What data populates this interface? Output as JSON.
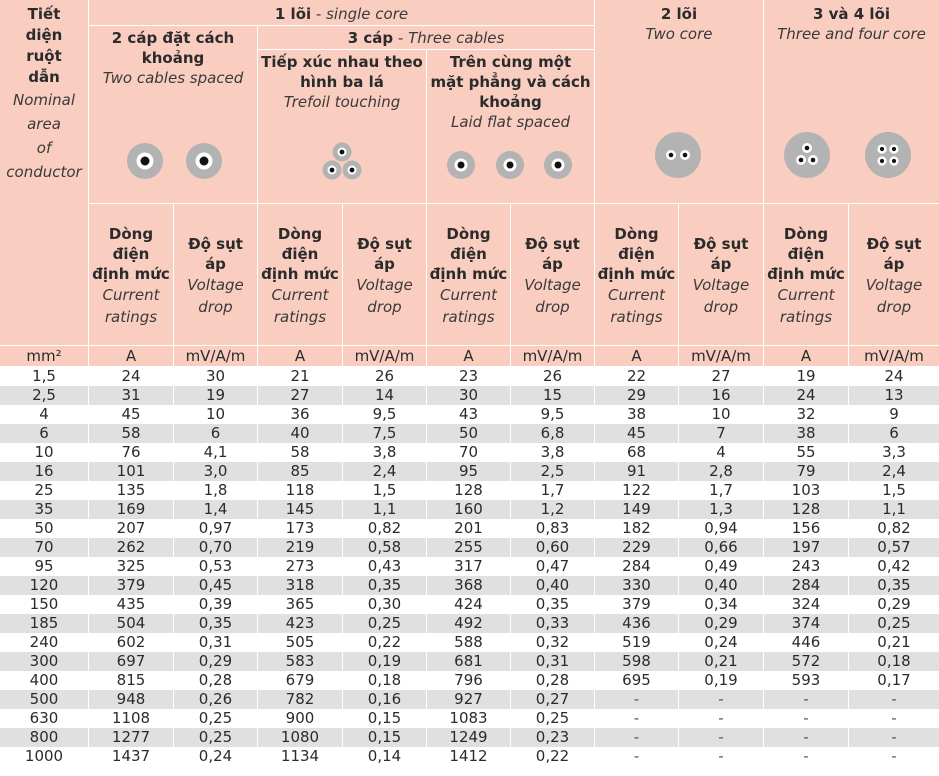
{
  "header": {
    "col0": {
      "vi": [
        "Tiết",
        "diện",
        "ruột",
        "dẫn"
      ],
      "en": [
        "Nominal",
        "area",
        "of",
        "conductor"
      ]
    },
    "single_core": {
      "vi": "1 lõi",
      "sep": " - ",
      "en": "single core"
    },
    "two_spaced": {
      "vi": [
        "2 cáp đặt cách",
        "khoảng"
      ],
      "en": "Two cables spaced"
    },
    "three_cables": {
      "vi": "3 cáp",
      "sep": " - ",
      "en": "Three cables"
    },
    "trefoil": {
      "vi": [
        "Tiếp xúc nhau theo",
        "hình ba lá"
      ],
      "en": "Trefoil touching"
    },
    "flat": {
      "vi": [
        "Trên cùng một",
        "mặt phẳng và cách",
        "khoảng"
      ],
      "en": "Laid flat spaced"
    },
    "two_core": {
      "vi": "2 lõi",
      "en": "Two core"
    },
    "three_four": {
      "vi": "3 và 4 lõi",
      "en": "Three and four core"
    },
    "current": {
      "vi": [
        "Dòng",
        "điện",
        "định mức"
      ],
      "en": [
        "Current",
        "ratings"
      ]
    },
    "vdrop": {
      "vi": [
        "Độ sụt",
        "áp"
      ],
      "en": [
        "Voltage",
        "drop"
      ]
    }
  },
  "units": [
    "mm²",
    "A",
    "mV/A/m",
    "A",
    "mV/A/m",
    "A",
    "mV/A/m",
    "A",
    "mV/A/m",
    "A",
    "mV/A/m"
  ],
  "colors": {
    "header_bg": "#f9cdbf",
    "row_alt": "#e0e0e1",
    "cable_grey": "#b3b3b3"
  },
  "rows": [
    [
      "1,5",
      "24",
      "30",
      "21",
      "26",
      "23",
      "26",
      "22",
      "27",
      "19",
      "24"
    ],
    [
      "2,5",
      "31",
      "19",
      "27",
      "14",
      "30",
      "15",
      "29",
      "16",
      "24",
      "13"
    ],
    [
      "4",
      "45",
      "10",
      "36",
      "9,5",
      "43",
      "9,5",
      "38",
      "10",
      "32",
      "9"
    ],
    [
      "6",
      "58",
      "6",
      "40",
      "7,5",
      "50",
      "6,8",
      "45",
      "7",
      "38",
      "6"
    ],
    [
      "10",
      "76",
      "4,1",
      "58",
      "3,8",
      "70",
      "3,8",
      "68",
      "4",
      "55",
      "3,3"
    ],
    [
      "16",
      "101",
      "3,0",
      "85",
      "2,4",
      "95",
      "2,5",
      "91",
      "2,8",
      "79",
      "2,4"
    ],
    [
      "25",
      "135",
      "1,8",
      "118",
      "1,5",
      "128",
      "1,7",
      "122",
      "1,7",
      "103",
      "1,5"
    ],
    [
      "35",
      "169",
      "1,4",
      "145",
      "1,1",
      "160",
      "1,2",
      "149",
      "1,3",
      "128",
      "1,1"
    ],
    [
      "50",
      "207",
      "0,97",
      "173",
      "0,82",
      "201",
      "0,83",
      "182",
      "0,94",
      "156",
      "0,82"
    ],
    [
      "70",
      "262",
      "0,70",
      "219",
      "0,58",
      "255",
      "0,60",
      "229",
      "0,66",
      "197",
      "0,57"
    ],
    [
      "95",
      "325",
      "0,53",
      "273",
      "0,43",
      "317",
      "0,47",
      "284",
      "0,49",
      "243",
      "0,42"
    ],
    [
      "120",
      "379",
      "0,45",
      "318",
      "0,35",
      "368",
      "0,40",
      "330",
      "0,40",
      "284",
      "0,35"
    ],
    [
      "150",
      "435",
      "0,39",
      "365",
      "0,30",
      "424",
      "0,35",
      "379",
      "0,34",
      "324",
      "0,29"
    ],
    [
      "185",
      "504",
      "0,35",
      "423",
      "0,25",
      "492",
      "0,33",
      "436",
      "0,29",
      "374",
      "0,25"
    ],
    [
      "240",
      "602",
      "0,31",
      "505",
      "0,22",
      "588",
      "0,32",
      "519",
      "0,24",
      "446",
      "0,21"
    ],
    [
      "300",
      "697",
      "0,29",
      "583",
      "0,19",
      "681",
      "0,31",
      "598",
      "0,21",
      "572",
      "0,18"
    ],
    [
      "400",
      "815",
      "0,28",
      "679",
      "0,18",
      "796",
      "0,28",
      "695",
      "0,19",
      "593",
      "0,17"
    ],
    [
      "500",
      "948",
      "0,26",
      "782",
      "0,16",
      "927",
      "0,27",
      "-",
      "-",
      "-",
      "-"
    ],
    [
      "630",
      "1108",
      "0,25",
      "900",
      "0,15",
      "1083",
      "0,25",
      "-",
      "-",
      "-",
      "-"
    ],
    [
      "800",
      "1277",
      "0,25",
      "1080",
      "0,15",
      "1249",
      "0,23",
      "-",
      "-",
      "-",
      "-"
    ],
    [
      "1000",
      "1437",
      "0,24",
      "1134",
      "0,14",
      "1412",
      "0,22",
      "-",
      "-",
      "-",
      "-"
    ]
  ]
}
